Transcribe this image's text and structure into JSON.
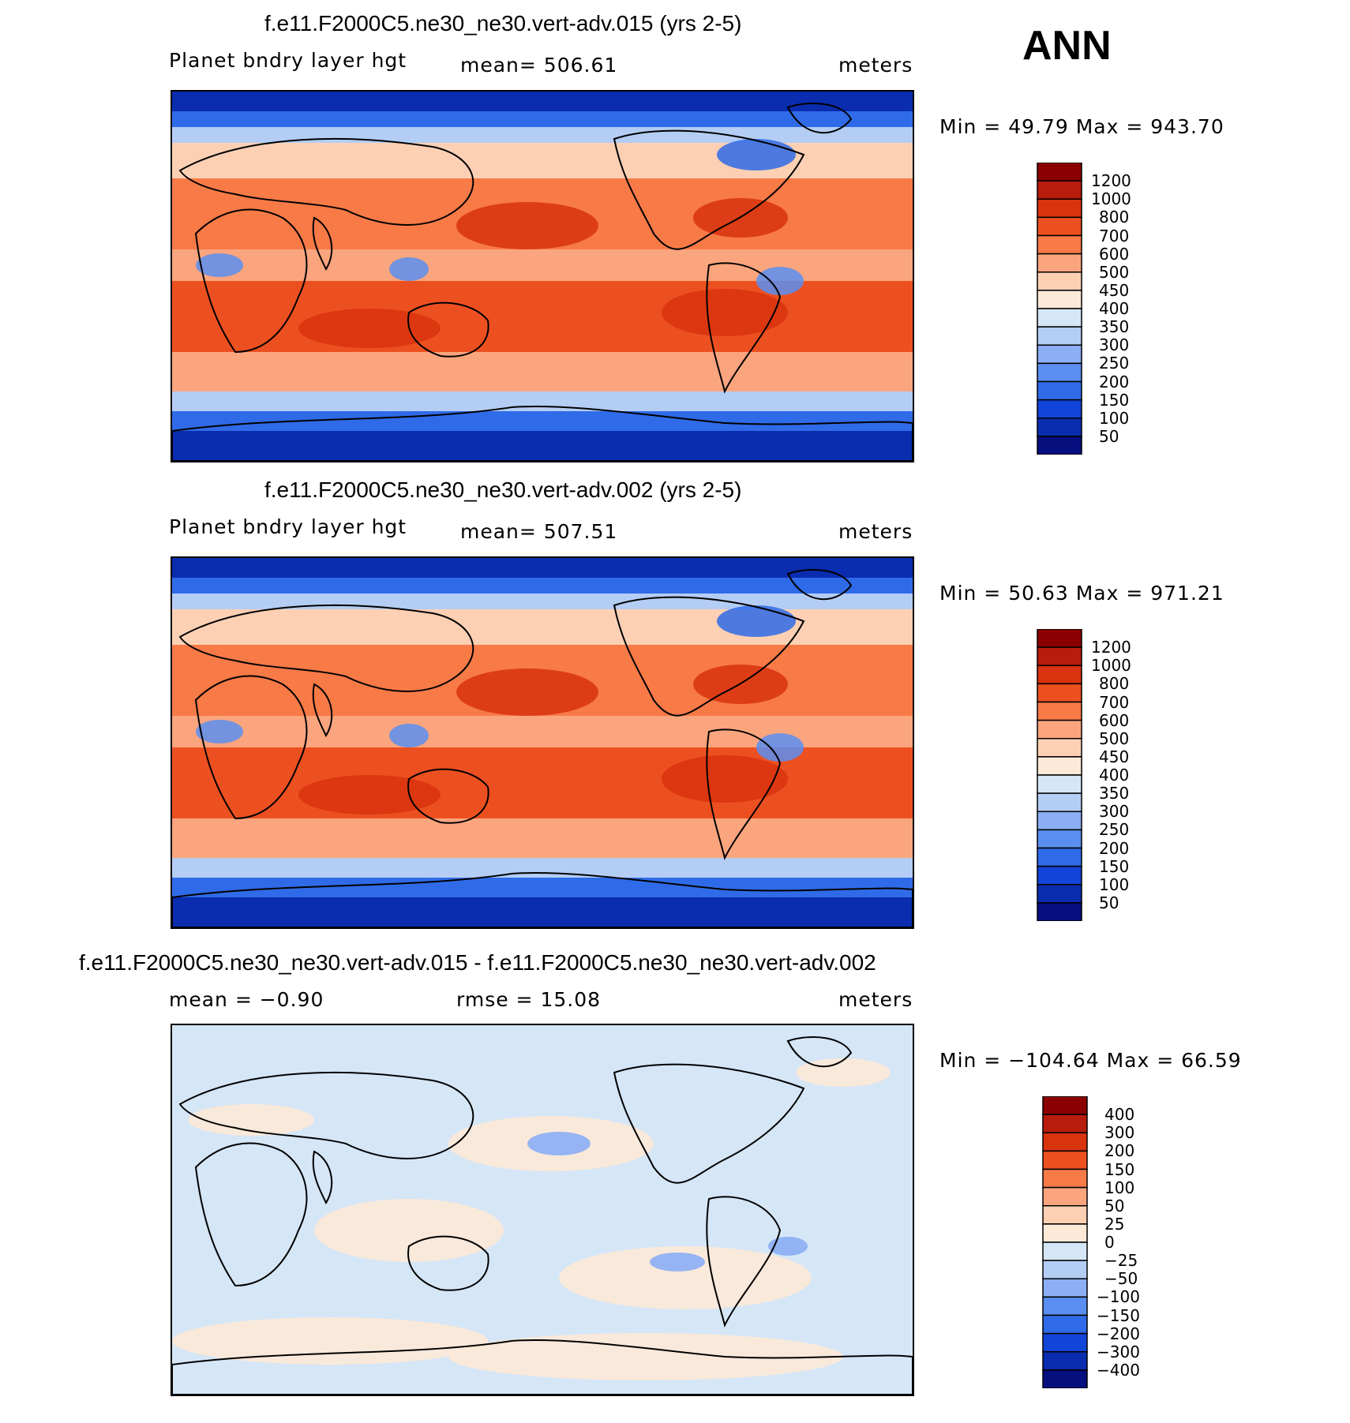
{
  "season_label": "ANN",
  "panels": [
    {
      "title": "f.e11.F2000C5.ne30_ne30.vert-adv.015 (yrs 2-5)",
      "left_label": "Planet bndry layer hgt",
      "center_label": "mean=  506.61",
      "units": "meters",
      "minmax": "Min =   49.79  Max  =  943.70",
      "colorbar_labels": [
        "1200",
        "1000",
        "800",
        "700",
        "600",
        "500",
        "450",
        "400",
        "350",
        "300",
        "250",
        "200",
        "150",
        "100",
        "50"
      ],
      "colors": [
        "#8b0000",
        "#b71c0c",
        "#d8320e",
        "#ed5020",
        "#f77a47",
        "#fba57e",
        "#fdd0b4",
        "#fde9d8",
        "#d5e6f6",
        "#b4cdf5",
        "#8baef5",
        "#5a8ef0",
        "#2f6be8",
        "#1144d8",
        "#0a2cae",
        "#060f7e"
      ],
      "chart_data": {
        "type": "heatmap",
        "title": "f.e11.F2000C5.ne30_ne30.vert-adv.015 (yrs 2-5)",
        "variable": "Planet bndry layer hgt",
        "units": "meters",
        "mean": 506.61,
        "min": 49.79,
        "max": 943.7,
        "contour_levels": [
          50,
          100,
          150,
          200,
          250,
          300,
          350,
          400,
          450,
          500,
          600,
          700,
          800,
          1000,
          1200
        ]
      }
    },
    {
      "title": "f.e11.F2000C5.ne30_ne30.vert-adv.002 (yrs 2-5)",
      "left_label": "Planet bndry layer hgt",
      "center_label": "mean=  507.51",
      "units": "meters",
      "minmax": "Min =   50.63  Max  =  971.21",
      "colorbar_labels": [
        "1200",
        "1000",
        "800",
        "700",
        "600",
        "500",
        "450",
        "400",
        "350",
        "300",
        "250",
        "200",
        "150",
        "100",
        "50"
      ],
      "colors": [
        "#8b0000",
        "#b71c0c",
        "#d8320e",
        "#ed5020",
        "#f77a47",
        "#fba57e",
        "#fdd0b4",
        "#fde9d8",
        "#d5e6f6",
        "#b4cdf5",
        "#8baef5",
        "#5a8ef0",
        "#2f6be8",
        "#1144d8",
        "#0a2cae",
        "#060f7e"
      ],
      "chart_data": {
        "type": "heatmap",
        "title": "f.e11.F2000C5.ne30_ne30.vert-adv.002 (yrs 2-5)",
        "variable": "Planet bndry layer hgt",
        "units": "meters",
        "mean": 507.51,
        "min": 50.63,
        "max": 971.21,
        "contour_levels": [
          50,
          100,
          150,
          200,
          250,
          300,
          350,
          400,
          450,
          500,
          600,
          700,
          800,
          1000,
          1200
        ]
      }
    },
    {
      "title": "f.e11.F2000C5.ne30_ne30.vert-adv.015 - f.e11.F2000C5.ne30_ne30.vert-adv.002",
      "left_label": "mean =    −0.90",
      "center_label": "rmse =    15.08",
      "units": "meters",
      "minmax": "Min = −104.64  Max  =   66.59",
      "colorbar_labels": [
        "400",
        "300",
        "200",
        "150",
        "100",
        "50",
        "25",
        "0",
        "−25",
        "−50",
        "−100",
        "−150",
        "−200",
        "−300",
        "−400"
      ],
      "colors": [
        "#8b0000",
        "#b71c0c",
        "#d8320e",
        "#ed5020",
        "#f77a47",
        "#fba57e",
        "#fdd0b4",
        "#fde9d8",
        "#d5e6f6",
        "#b4cdf5",
        "#8baef5",
        "#5a8ef0",
        "#2f6be8",
        "#1144d8",
        "#0a2cae",
        "#060f7e"
      ],
      "chart_data": {
        "type": "heatmap",
        "title": "f.e11.F2000C5.ne30_ne30.vert-adv.015 - f.e11.F2000C5.ne30_ne30.vert-adv.002",
        "units": "meters",
        "mean": -0.9,
        "rmse": 15.08,
        "min": -104.64,
        "max": 66.59,
        "contour_levels": [
          -400,
          -300,
          -200,
          -150,
          -100,
          -50,
          -25,
          0,
          25,
          50,
          100,
          150,
          200,
          300,
          400
        ]
      }
    }
  ]
}
